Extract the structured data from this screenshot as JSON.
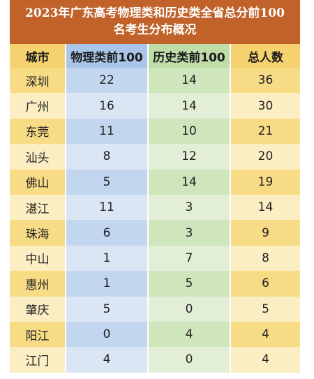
{
  "title": {
    "line1": "2023年广东高考物理类和历史类全省总分前100",
    "line2": "名考生分布概况"
  },
  "columns": [
    "城市",
    "物理类前100",
    "历史类前100",
    "总人数"
  ],
  "rows": [
    {
      "city": "深圳",
      "physics": "22",
      "history": "14",
      "total": "36"
    },
    {
      "city": "广州",
      "physics": "16",
      "history": "14",
      "total": "30"
    },
    {
      "city": "东莞",
      "physics": "11",
      "history": "10",
      "total": "21"
    },
    {
      "city": "汕头",
      "physics": "8",
      "history": "12",
      "total": "20"
    },
    {
      "city": "佛山",
      "physics": "5",
      "history": "14",
      "total": "19"
    },
    {
      "city": "湛江",
      "physics": "11",
      "history": "3",
      "total": "14"
    },
    {
      "city": "珠海",
      "physics": "6",
      "history": "3",
      "total": "9"
    },
    {
      "city": "中山",
      "physics": "1",
      "history": "7",
      "total": "8"
    },
    {
      "city": "惠州",
      "physics": "1",
      "history": "5",
      "total": "6"
    },
    {
      "city": "肇庆",
      "physics": "5",
      "history": "0",
      "total": "5"
    },
    {
      "city": "阳江",
      "physics": "0",
      "history": "4",
      "total": "4"
    },
    {
      "city": "江门",
      "physics": "4",
      "history": "0",
      "total": "4"
    }
  ],
  "colors": {
    "title_bg": "#c0622a",
    "city_col": "#f5d16f",
    "physics_col": "#a9c5ea",
    "history_col": "#bfdca9",
    "total_col": "#f5d16f"
  }
}
